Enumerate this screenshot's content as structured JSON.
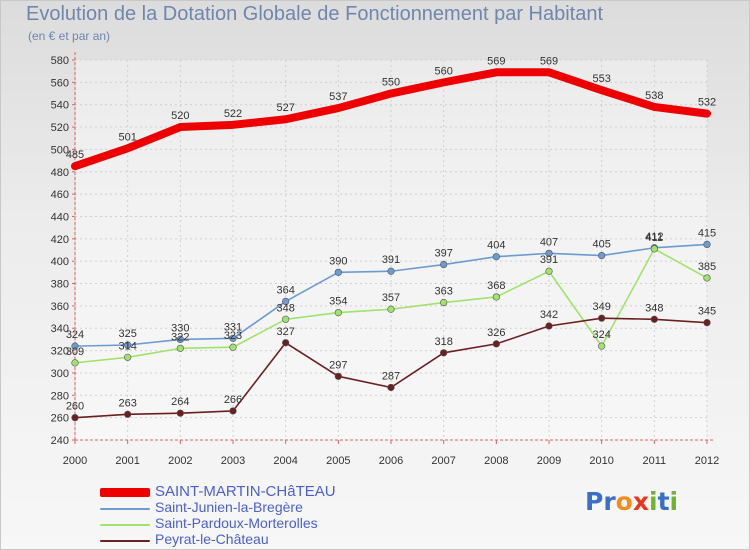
{
  "title": "Evolution de la Dotation Globale de Fonctionnement par Habitant",
  "subtitle": "(en € et par an)",
  "logo": {
    "text": "Proxiti",
    "letters": [
      "P",
      "r",
      "o",
      "x",
      "i",
      "t",
      "i"
    ],
    "colors": [
      "#3b6fc7",
      "#3b6fc7",
      "#f28c1c",
      "#e8371f",
      "#6fb52c",
      "#3b6fc7",
      "#6fb52c"
    ]
  },
  "chart_data": {
    "type": "line",
    "title": "Evolution de la Dotation Globale de Fonctionnement par Habitant",
    "subtitle": "(en € et par an)",
    "xlabel": "",
    "ylabel": "",
    "ylim": [
      240,
      580
    ],
    "ytick_step": 20,
    "grid": true,
    "legend_position": "bottom-left",
    "x": [
      "2000",
      "2001",
      "2002",
      "2003",
      "2004",
      "2005",
      "2006",
      "2007",
      "2008",
      "2009",
      "2010",
      "2011",
      "2012"
    ],
    "series": [
      {
        "name": "SAINT-MARTIN-CHâTEAU",
        "color": "#ee0000",
        "bold": true,
        "values": [
          485,
          501,
          520,
          522,
          527,
          537,
          550,
          560,
          569,
          569,
          553,
          538,
          532
        ]
      },
      {
        "name": "Saint-Junien-la-Bregère",
        "color": "#6c9bd0",
        "bold": false,
        "values": [
          324,
          325,
          330,
          331,
          364,
          390,
          391,
          397,
          404,
          407,
          405,
          412,
          415
        ]
      },
      {
        "name": "Saint-Pardoux-Morterolles",
        "color": "#9fe36b",
        "bold": false,
        "values": [
          309,
          314,
          322,
          323,
          348,
          354,
          357,
          363,
          368,
          391,
          324,
          411,
          385
        ]
      },
      {
        "name": "Peyrat-le-Château",
        "color": "#6b2020",
        "bold": false,
        "values": [
          260,
          263,
          264,
          266,
          327,
          297,
          287,
          318,
          326,
          342,
          349,
          348,
          345
        ]
      }
    ]
  }
}
